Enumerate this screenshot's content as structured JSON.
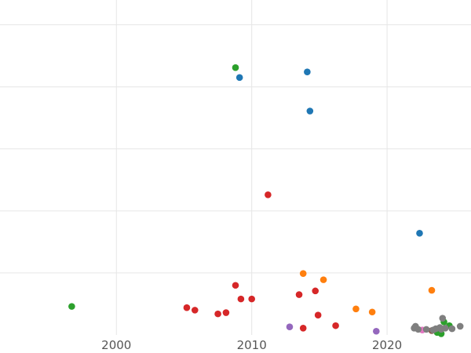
{
  "chart_data": {
    "type": "scatter",
    "title": "",
    "xlabel": "",
    "ylabel": "",
    "xlim": [
      1991.4,
      2026.2
    ],
    "ylim": [
      0,
      5.4
    ],
    "x_ticks": [
      2000,
      2010,
      2020
    ],
    "x_tick_labels": [
      "2000",
      "2010",
      "2020"
    ],
    "y_grid_values": [
      1,
      2,
      3,
      4,
      5
    ],
    "grid": true,
    "legend": "none",
    "series": [
      {
        "color": "#1f77b4",
        "points": [
          {
            "x": 2009.1,
            "y": 4.15
          },
          {
            "x": 2014.1,
            "y": 4.24
          },
          {
            "x": 2014.3,
            "y": 3.61
          },
          {
            "x": 2022.4,
            "y": 1.64
          }
        ]
      },
      {
        "color": "#2ca02c",
        "points": [
          {
            "x": 2008.8,
            "y": 4.31
          },
          {
            "x": 1996.7,
            "y": 0.46
          },
          {
            "x": 2024.2,
            "y": 0.21
          },
          {
            "x": 2024.6,
            "y": 0.15
          },
          {
            "x": 2023.7,
            "y": 0.04
          },
          {
            "x": 2024.0,
            "y": 0.02
          }
        ]
      },
      {
        "color": "#d62728",
        "points": [
          {
            "x": 2011.2,
            "y": 2.26
          },
          {
            "x": 2008.8,
            "y": 0.8
          },
          {
            "x": 2014.7,
            "y": 0.71
          },
          {
            "x": 2013.5,
            "y": 0.65
          },
          {
            "x": 2009.2,
            "y": 0.58
          },
          {
            "x": 2010.0,
            "y": 0.58
          },
          {
            "x": 2005.2,
            "y": 0.44
          },
          {
            "x": 2005.8,
            "y": 0.4
          },
          {
            "x": 2008.1,
            "y": 0.36
          },
          {
            "x": 2007.5,
            "y": 0.34
          },
          {
            "x": 2014.9,
            "y": 0.32
          },
          {
            "x": 2016.2,
            "y": 0.15
          },
          {
            "x": 2013.8,
            "y": 0.11
          }
        ]
      },
      {
        "color": "#ff7f0e",
        "points": [
          {
            "x": 2013.8,
            "y": 0.99
          },
          {
            "x": 2015.3,
            "y": 0.89
          },
          {
            "x": 2023.3,
            "y": 0.72
          },
          {
            "x": 2017.7,
            "y": 0.42
          },
          {
            "x": 2018.9,
            "y": 0.37
          }
        ]
      },
      {
        "color": "#9467bd",
        "points": [
          {
            "x": 2012.8,
            "y": 0.13
          },
          {
            "x": 2019.2,
            "y": 0.06
          }
        ]
      },
      {
        "color": "#8c564b",
        "points": [
          {
            "x": 2023.3,
            "y": 0.07
          }
        ]
      },
      {
        "color": "#e377c2",
        "points": [
          {
            "x": 2022.6,
            "y": 0.08
          }
        ]
      },
      {
        "color": "#7f7f7f",
        "points": [
          {
            "x": 2022.0,
            "y": 0.11
          },
          {
            "x": 2022.3,
            "y": 0.09
          },
          {
            "x": 2022.9,
            "y": 0.09
          },
          {
            "x": 2023.6,
            "y": 0.1
          },
          {
            "x": 2024.0,
            "y": 0.09
          },
          {
            "x": 2024.3,
            "y": 0.11
          },
          {
            "x": 2024.8,
            "y": 0.1
          },
          {
            "x": 2025.4,
            "y": 0.14
          },
          {
            "x": 2022.1,
            "y": 0.14
          },
          {
            "x": 2023.9,
            "y": 0.12
          },
          {
            "x": 2024.1,
            "y": 0.27
          },
          {
            "x": 2023.4,
            "y": 0.08
          }
        ]
      }
    ]
  }
}
